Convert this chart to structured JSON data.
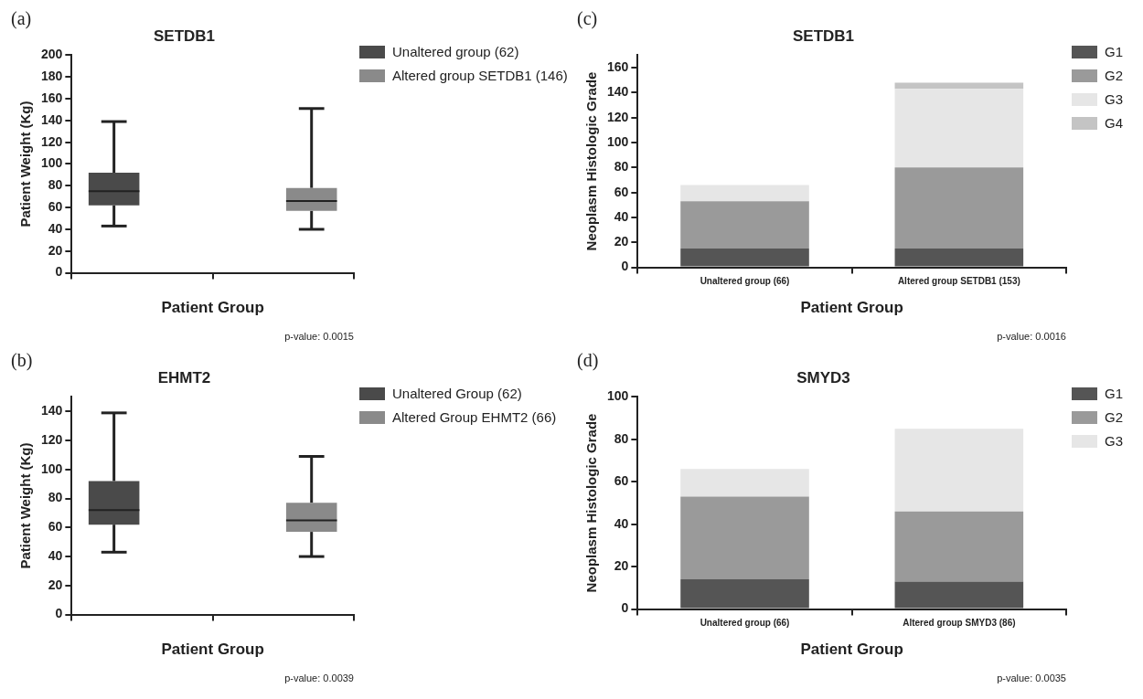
{
  "chart_data": [
    {
      "type": "box",
      "title": "SETDB1",
      "xlabel": "Patient Group",
      "ylabel": "Patient Weight (Kg)",
      "categories": [
        null,
        null
      ],
      "ylim": [
        0,
        200
      ],
      "yticks": [
        0,
        20,
        40,
        60,
        80,
        100,
        120,
        140,
        160,
        180,
        200
      ],
      "grid": false,
      "legend": "top right",
      "annotations": [
        "(a)",
        "p-value: 0.0015"
      ],
      "series": [
        {
          "name": "Unaltered group (62)",
          "color": "#4a4a4a",
          "boxes": [
            {
              "low": 43,
              "q1": 62,
              "median": 75,
              "q3": 92,
              "high": 139
            },
            null
          ]
        },
        {
          "name": "Altered group SETDB1 (146)",
          "color": "#8a8a8a",
          "boxes": [
            null,
            {
              "low": 40,
              "q1": 57,
              "median": 66,
              "q3": 78,
              "high": 151
            }
          ]
        }
      ]
    },
    {
      "type": "bar",
      "stacked": true,
      "title": "SETDB1",
      "xlabel": "Patient Group",
      "ylabel": "Neoplasm Histologic Grade",
      "categories": [
        "Unaltered group (66)",
        "Altered group SETDB1 (153)"
      ],
      "ylim": [
        0,
        170
      ],
      "yticks": [
        0,
        20,
        40,
        60,
        80,
        100,
        120,
        140,
        160
      ],
      "grid": false,
      "legend": "top right",
      "annotations": [
        "(c)",
        "p-value: 0.0016"
      ],
      "series": [
        {
          "name": "G1",
          "color": "#555555",
          "values": [
            15,
            15
          ]
        },
        {
          "name": "G2",
          "color": "#9a9a9a",
          "values": [
            38,
            65
          ]
        },
        {
          "name": "G3",
          "color": "#e6e6e6",
          "values": [
            13,
            63
          ]
        },
        {
          "name": "G4",
          "color": "#c4c4c4",
          "values": [
            0,
            5
          ]
        }
      ]
    },
    {
      "type": "box",
      "title": "EHMT2",
      "xlabel": "Patient Group",
      "ylabel": "Patient Weight (Kg)",
      "categories": [
        null,
        null
      ],
      "ylim": [
        0,
        150
      ],
      "yticks": [
        0,
        20,
        40,
        60,
        80,
        100,
        120,
        140
      ],
      "grid": false,
      "legend": "top right",
      "annotations": [
        "(b)",
        "p-value: 0.0039"
      ],
      "series": [
        {
          "name": "Unaltered Group (62)",
          "color": "#4a4a4a",
          "boxes": [
            {
              "low": 43,
              "q1": 62,
              "median": 72,
              "q3": 92,
              "high": 139
            },
            null
          ]
        },
        {
          "name": "Altered Group EHMT2 (66)",
          "color": "#8a8a8a",
          "boxes": [
            null,
            {
              "low": 40,
              "q1": 57,
              "median": 65,
              "q3": 77,
              "high": 109
            }
          ]
        }
      ]
    },
    {
      "type": "bar",
      "stacked": true,
      "title": "SMYD3",
      "xlabel": "Patient Group",
      "ylabel": "Neoplasm Histologic Grade",
      "categories": [
        "Unaltered group (66)",
        "Altered group SMYD3 (86)"
      ],
      "ylim": [
        0,
        100
      ],
      "yticks": [
        0,
        20,
        40,
        60,
        80,
        100
      ],
      "grid": false,
      "legend": "top right",
      "annotations": [
        "(d)",
        "p-value: 0.0035"
      ],
      "series": [
        {
          "name": "G1",
          "color": "#555555",
          "values": [
            14,
            13
          ]
        },
        {
          "name": "G2",
          "color": "#9a9a9a",
          "values": [
            39,
            33
          ]
        },
        {
          "name": "G3",
          "color": "#e6e6e6",
          "values": [
            13,
            39
          ]
        }
      ]
    }
  ]
}
